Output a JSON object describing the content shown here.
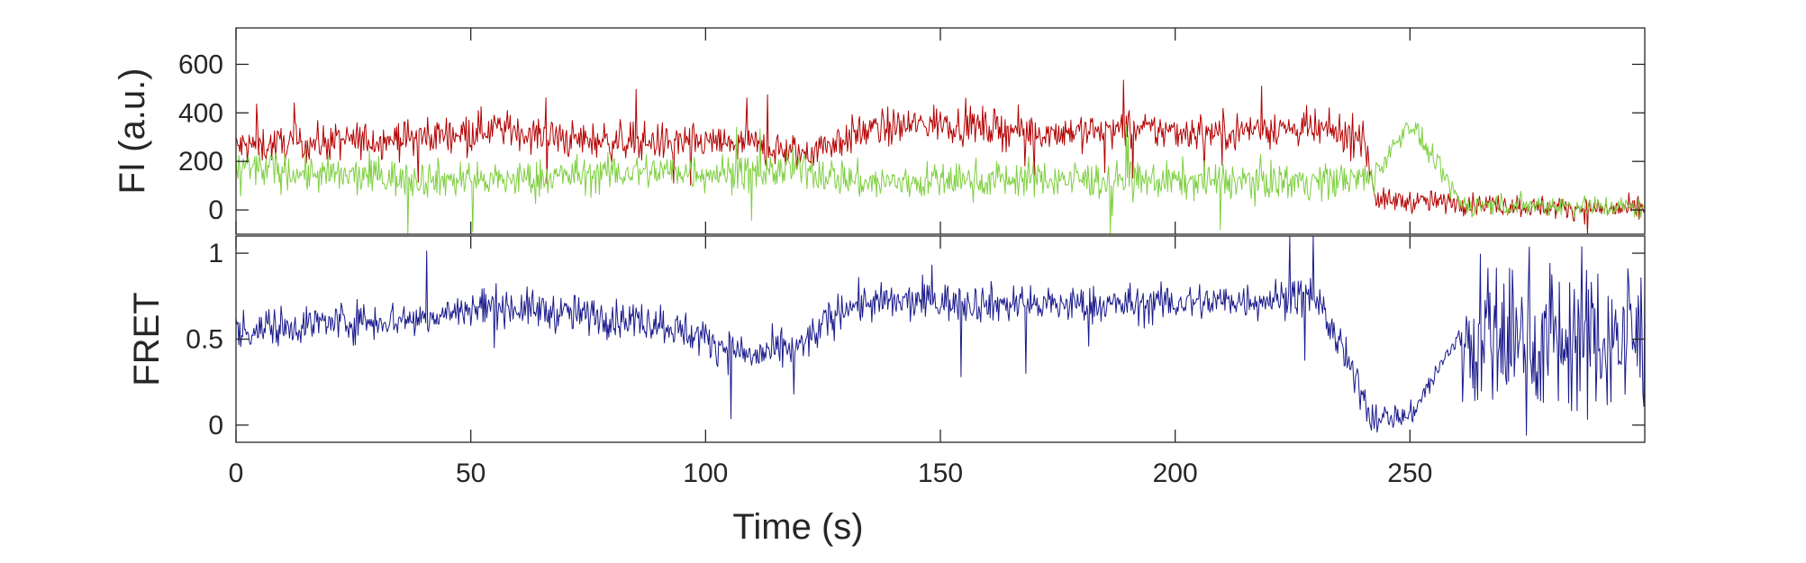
{
  "chart_data": [
    {
      "type": "line",
      "panel": "top",
      "title": "",
      "xlabel": "",
      "ylabel": "FI (a.u.)",
      "xlim": [
        0,
        300
      ],
      "ylim": [
        -100,
        750
      ],
      "yticks": [
        0,
        200,
        400,
        600
      ],
      "ytick_labels": [
        "0",
        "200",
        "400",
        "600"
      ],
      "grid": false,
      "legend": "none",
      "series": [
        {
          "color": "#b30000",
          "segments": [
            {
              "x": [
                0,
                242
              ],
              "mean": [
                270,
                300
              ],
              "noise": 70
            },
            {
              "x": [
                242,
                300
              ],
              "mean": [
                40,
                10
              ],
              "noise": 35
            }
          ],
          "x": [
            0,
            20,
            40,
            55,
            70,
            90,
            110,
            120,
            135,
            150,
            170,
            190,
            210,
            220,
            240,
            243,
            260,
            280,
            300
          ],
          "values": [
            260,
            280,
            300,
            340,
            290,
            280,
            270,
            230,
            330,
            360,
            320,
            330,
            320,
            340,
            310,
            40,
            30,
            10,
            0
          ]
        },
        {
          "color": "#7ecf40",
          "segments": [
            {
              "x": [
                0,
                242
              ],
              "mean": [
                150,
                130
              ],
              "noise": 60
            },
            {
              "x": [
                242,
                260
              ],
              "mean": [
                360,
                360
              ],
              "noise": 70
            },
            {
              "x": [
                260,
                300
              ],
              "mean": [
                20,
                10
              ],
              "noise": 40
            }
          ],
          "x": [
            0,
            20,
            40,
            55,
            70,
            90,
            110,
            120,
            135,
            150,
            170,
            190,
            210,
            230,
            242,
            250,
            261,
            280,
            300
          ],
          "values": [
            180,
            140,
            130,
            120,
            140,
            160,
            150,
            170,
            110,
            120,
            130,
            120,
            120,
            120,
            130,
            360,
            20,
            20,
            10
          ]
        }
      ]
    },
    {
      "type": "line",
      "panel": "bottom",
      "title": "",
      "xlabel": "Time (s)",
      "ylabel": "FRET",
      "xlim": [
        0,
        300
      ],
      "ylim": [
        -0.1,
        1.1
      ],
      "xticks": [
        0,
        50,
        100,
        150,
        200,
        250
      ],
      "xtick_labels": [
        "0",
        "50",
        "100",
        "150",
        "200",
        "250"
      ],
      "yticks": [
        0,
        0.5,
        1
      ],
      "ytick_labels": [
        "0",
        "0.5",
        "1"
      ],
      "grid": false,
      "legend": "none",
      "series": [
        {
          "color": "#1a1a8c",
          "x": [
            0,
            20,
            40,
            55,
            70,
            90,
            100,
            110,
            120,
            130,
            150,
            170,
            190,
            210,
            230,
            242,
            250,
            260,
            270,
            280,
            300
          ],
          "values": [
            0.55,
            0.6,
            0.62,
            0.7,
            0.65,
            0.6,
            0.5,
            0.4,
            0.45,
            0.7,
            0.72,
            0.7,
            0.7,
            0.72,
            0.75,
            0.05,
            0.05,
            0.5,
            0.5,
            0.5,
            0.5
          ]
        }
      ]
    }
  ]
}
